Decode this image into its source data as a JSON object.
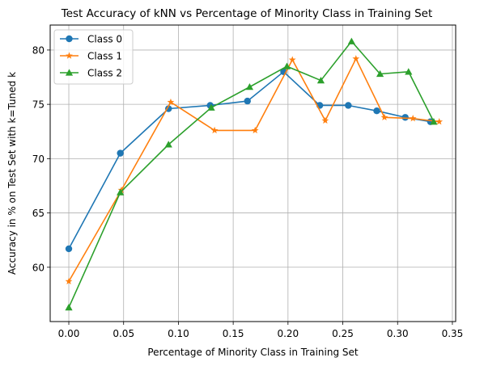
{
  "chart_data": {
    "type": "line",
    "title": "Test Accuracy of kNN vs Percentage of Minority Class in Training Set",
    "xlabel": "Percentage of Minority Class in Training Set",
    "ylabel": "Accuracy in % on Test Set with k=Tuned k",
    "xlim": [
      -0.017,
      0.353
    ],
    "ylim": [
      55.0,
      82.3
    ],
    "xticks": [
      0.0,
      0.05,
      0.1,
      0.15,
      0.2,
      0.25,
      0.3,
      0.35
    ],
    "xtick_labels": [
      "0.00",
      "0.05",
      "0.10",
      "0.15",
      "0.20",
      "0.25",
      "0.30",
      "0.35"
    ],
    "yticks": [
      60,
      65,
      70,
      75,
      80
    ],
    "ytick_labels": [
      "60",
      "65",
      "70",
      "75",
      "80"
    ],
    "grid": true,
    "legend_position": "top-left",
    "series": [
      {
        "name": "Class 0",
        "color": "#1f77b4",
        "marker": "circle",
        "x": [
          0.0,
          0.047,
          0.091,
          0.129,
          0.163,
          0.196,
          0.229,
          0.255,
          0.281,
          0.307,
          0.33
        ],
        "y": [
          61.7,
          70.5,
          74.6,
          74.9,
          75.3,
          78.0,
          74.9,
          74.9,
          74.4,
          73.8,
          73.4
        ]
      },
      {
        "name": "Class 1",
        "color": "#ff7f0e",
        "marker": "star",
        "x": [
          0.0,
          0.048,
          0.093,
          0.133,
          0.17,
          0.204,
          0.234,
          0.262,
          0.288,
          0.314,
          0.338
        ],
        "y": [
          58.7,
          67.1,
          75.2,
          72.6,
          72.6,
          79.1,
          73.5,
          79.2,
          73.8,
          73.7,
          73.4
        ]
      },
      {
        "name": "Class 2",
        "color": "#2ca02c",
        "marker": "triangle",
        "x": [
          0.0,
          0.047,
          0.091,
          0.13,
          0.165,
          0.199,
          0.23,
          0.258,
          0.284,
          0.31,
          0.333
        ],
        "y": [
          56.3,
          66.9,
          71.3,
          74.7,
          76.6,
          78.5,
          77.2,
          80.8,
          77.8,
          78.0,
          73.4
        ]
      }
    ]
  }
}
